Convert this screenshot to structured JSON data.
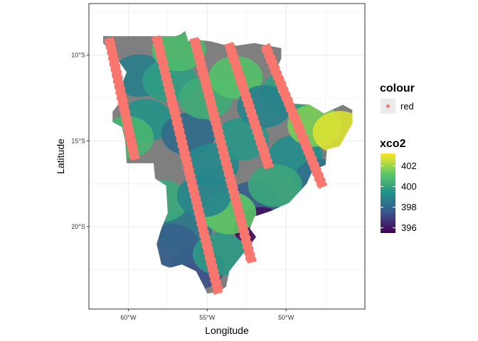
{
  "chart_data": {
    "type": "scatter",
    "subtype": "map",
    "title": "",
    "xlabel": "Longitude",
    "ylabel": "Latitude",
    "xlim": [
      -62.5,
      -45.0
    ],
    "ylim": [
      -24.8,
      -7.0
    ],
    "x_ticks": [
      {
        "value": -60,
        "label": "60°W"
      },
      {
        "value": -55,
        "label": "55°W"
      },
      {
        "value": -50,
        "label": "50°W"
      }
    ],
    "y_ticks": [
      {
        "value": -10,
        "label": "10°S"
      },
      {
        "value": -15,
        "label": "15°S"
      },
      {
        "value": -20,
        "label": "20°S"
      }
    ],
    "grid": true,
    "background": "#ffffff",
    "grid_color": "#ebebeb",
    "na_fill": "#7f7f7f",
    "fill_scale": {
      "name": "xco2",
      "title": "xco2",
      "type": "continuous",
      "palette": "viridis",
      "limits": [
        395.5,
        403.2
      ],
      "breaks": [
        396,
        398,
        400,
        402
      ],
      "break_labels": [
        "396",
        "398",
        "400",
        "402"
      ],
      "colors": [
        "#440154",
        "#3b528b",
        "#21908c",
        "#5dc963",
        "#fde725"
      ]
    },
    "colour_legend": {
      "title": "colour",
      "entries": [
        {
          "label": "red",
          "color": "#f8766d"
        }
      ]
    },
    "region_outline": [
      [
        -61.6,
        -8.9
      ],
      [
        -57.0,
        -8.9
      ],
      [
        -56.7,
        -8.8
      ],
      [
        -56.4,
        -8.6
      ],
      [
        -56.2,
        -9.2
      ],
      [
        -55.8,
        -9.1
      ],
      [
        -54.8,
        -9.2
      ],
      [
        -53.5,
        -9.5
      ],
      [
        -52.0,
        -9.3
      ],
      [
        -50.3,
        -9.6
      ],
      [
        -50.3,
        -10.2
      ],
      [
        -50.6,
        -10.8
      ],
      [
        -50.5,
        -12.1
      ],
      [
        -50.1,
        -12.8
      ],
      [
        -48.5,
        -12.9
      ],
      [
        -47.6,
        -13.4
      ],
      [
        -46.4,
        -12.9
      ],
      [
        -45.8,
        -13.2
      ],
      [
        -45.8,
        -14.0
      ],
      [
        -46.3,
        -14.8
      ],
      [
        -46.6,
        -15.3
      ],
      [
        -47.4,
        -15.5
      ],
      [
        -47.5,
        -16.4
      ],
      [
        -48.3,
        -16.7
      ],
      [
        -48.7,
        -17.5
      ],
      [
        -49.8,
        -18.6
      ],
      [
        -51.0,
        -19.1
      ],
      [
        -52.0,
        -19.4
      ],
      [
        -52.3,
        -20.1
      ],
      [
        -51.9,
        -20.6
      ],
      [
        -52.4,
        -21.2
      ],
      [
        -53.1,
        -22.0
      ],
      [
        -53.6,
        -22.6
      ],
      [
        -53.8,
        -23.5
      ],
      [
        -54.3,
        -23.8
      ],
      [
        -55.0,
        -23.9
      ],
      [
        -55.2,
        -23.5
      ],
      [
        -55.7,
        -22.6
      ],
      [
        -56.6,
        -22.2
      ],
      [
        -57.4,
        -22.4
      ],
      [
        -57.9,
        -22.2
      ],
      [
        -58.2,
        -21.0
      ],
      [
        -57.9,
        -20.1
      ],
      [
        -57.5,
        -19.2
      ],
      [
        -57.6,
        -17.6
      ],
      [
        -58.3,
        -17.2
      ],
      [
        -58.4,
        -16.3
      ],
      [
        -60.1,
        -16.3
      ],
      [
        -60.2,
        -15.0
      ],
      [
        -60.4,
        -14.2
      ],
      [
        -61.0,
        -13.9
      ],
      [
        -61.0,
        -13.3
      ],
      [
        -60.4,
        -12.6
      ],
      [
        -60.5,
        -11.9
      ],
      [
        -60.1,
        -11.0
      ],
      [
        -60.9,
        -10.0
      ],
      [
        -61.6,
        -9.3
      ]
    ],
    "orbit_tracks": [
      {
        "from": [
          -61.2,
          -9.1
        ],
        "to": [
          -59.6,
          -16.0
        ]
      },
      {
        "from": [
          -58.2,
          -9.0
        ],
        "to": [
          -54.3,
          -23.8
        ]
      },
      {
        "from": [
          -55.8,
          -9.1
        ],
        "to": [
          -52.2,
          -22.0
        ]
      },
      {
        "from": [
          -53.6,
          -9.4
        ],
        "to": [
          -51.1,
          -16.5
        ]
      },
      {
        "from": [
          -51.3,
          -9.5
        ],
        "to": [
          -47.7,
          -17.6
        ]
      }
    ],
    "patches": [
      {
        "x": -59.3,
        "y": -11.2,
        "xco2": 398.8
      },
      {
        "x": -58.9,
        "y": -13.8,
        "xco2": 399.5
      },
      {
        "x": -57.4,
        "y": -11.5,
        "xco2": 399.8
      },
      {
        "x": -56.8,
        "y": -9.7,
        "xco2": 400.8
      },
      {
        "x": -56.2,
        "y": -14.6,
        "xco2": 398.2
      },
      {
        "x": -55.1,
        "y": -12.5,
        "xco2": 400.3
      },
      {
        "x": -54.7,
        "y": -16.4,
        "xco2": 399.1
      },
      {
        "x": -53.2,
        "y": -11.3,
        "xco2": 401.0
      },
      {
        "x": -52.8,
        "y": -14.9,
        "xco2": 399.6
      },
      {
        "x": -52.1,
        "y": -18.6,
        "xco2": 397.8
      },
      {
        "x": -51.6,
        "y": -20.1,
        "xco2": 395.9
      },
      {
        "x": -49.9,
        "y": -12.2,
        "xco2": 399.9
      },
      {
        "x": -49.4,
        "y": -15.9,
        "xco2": 399.3
      },
      {
        "x": -48.2,
        "y": -14.1,
        "xco2": 401.6
      },
      {
        "x": -46.6,
        "y": -14.5,
        "xco2": 402.8
      },
      {
        "x": -47.8,
        "y": -17.3,
        "xco2": 398.4
      },
      {
        "x": -56.4,
        "y": -20.3,
        "xco2": 398.6
      },
      {
        "x": -55.6,
        "y": -22.4,
        "xco2": 397.4
      },
      {
        "x": -57.2,
        "y": -21.1,
        "xco2": 397.9
      },
      {
        "x": -54.2,
        "y": -21.6,
        "xco2": 399.7
      },
      {
        "x": -57.9,
        "y": -18.5,
        "xco2": 400.2
      },
      {
        "x": -60.1,
        "y": -14.8,
        "xco2": 400.6
      },
      {
        "x": -53.6,
        "y": -19.2,
        "xco2": 401.2
      },
      {
        "x": -50.7,
        "y": -17.6,
        "xco2": 400.1
      },
      {
        "x": -55.2,
        "y": -18.2,
        "xco2": 399.0
      },
      {
        "x": -51.4,
        "y": -13.0,
        "xco2": 398.9
      }
    ]
  }
}
